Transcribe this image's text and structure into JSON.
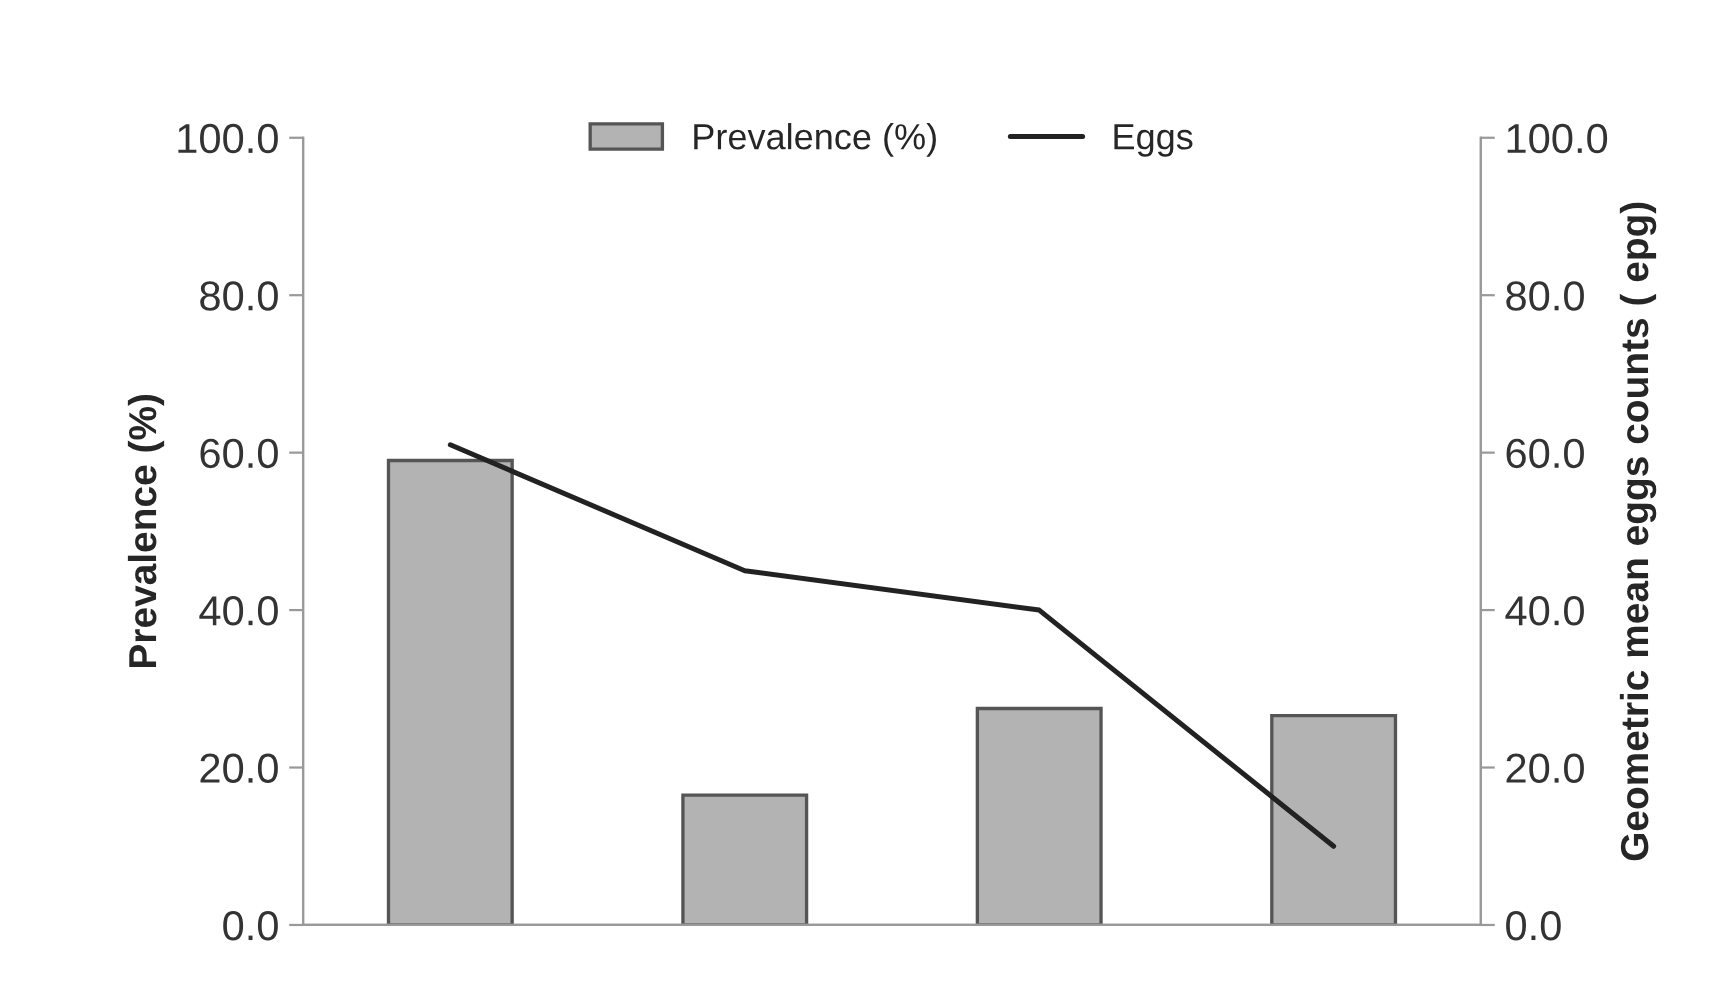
{
  "chart_data": {
    "type": "bar",
    "categories": [
      null,
      null,
      null,
      null
    ],
    "ylabel": "Prevalence (%)",
    "y2label": "Geometric mean eggs counts ( epg)",
    "series": [
      {
        "name": "Prevalence (%)",
        "color": "#b3b3b3",
        "values": [
          59,
          16.5,
          27.5,
          26.6
        ]
      },
      {
        "name": "Eggs",
        "type": "line",
        "axis": "y2",
        "color": "#222222",
        "values": [
          61,
          45,
          40,
          10
        ]
      }
    ],
    "ylim": [
      0,
      100
    ],
    "yticks": [
      {
        "value": 0,
        "label": "0.0"
      },
      {
        "value": 20,
        "label": "20.0"
      },
      {
        "value": 40,
        "label": "40.0"
      },
      {
        "value": 60,
        "label": "60.0"
      },
      {
        "value": 80,
        "label": "80.0"
      },
      {
        "value": 100,
        "label": "100.0"
      }
    ],
    "y2lim": [
      0,
      100
    ],
    "y2ticks": [
      {
        "value": 0,
        "label": "0.0"
      },
      {
        "value": 20,
        "label": "20.0"
      },
      {
        "value": 40,
        "label": "40.0"
      },
      {
        "value": 60,
        "label": "60.0"
      },
      {
        "value": 80,
        "label": "80.0"
      },
      {
        "value": 100,
        "label": "100.0"
      }
    ],
    "legend": "top",
    "grid": false,
    "marker": "none",
    "line_style": "solid"
  }
}
